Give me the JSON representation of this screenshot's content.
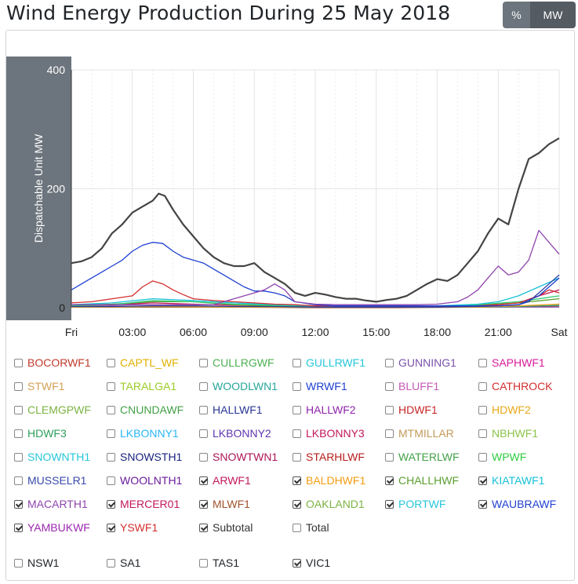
{
  "title": "Wind Energy Production During 25 May 2018",
  "toggle": {
    "percent_label": "%",
    "mw_label": "MW",
    "active": "MW"
  },
  "chart_data": {
    "type": "line",
    "ylabel": "Dispatchable Unit MW",
    "ylim": [
      0,
      400
    ],
    "y_ticks": [
      "0",
      "200",
      "400"
    ],
    "x_ticks": [
      "Fri",
      "03:00",
      "06:00",
      "09:00",
      "12:00",
      "15:00",
      "18:00",
      "21:00",
      "Sat"
    ],
    "x_hours": [
      0,
      3,
      6,
      9,
      12,
      15,
      18,
      21,
      24
    ],
    "series": [
      {
        "name": "Subtotal",
        "color": "#444444",
        "x": [
          0,
          0.5,
          1,
          1.5,
          2,
          2.5,
          3,
          3.5,
          4,
          4.3,
          4.6,
          5,
          5.5,
          6,
          6.5,
          7,
          7.5,
          8,
          8.5,
          9,
          9.5,
          10,
          10.5,
          11,
          11.5,
          12,
          12.5,
          13,
          13.5,
          14,
          14.5,
          15,
          15.5,
          16,
          16.5,
          17,
          17.5,
          18,
          18.5,
          19,
          19.5,
          20,
          20.5,
          21,
          21.5,
          22,
          22.5,
          23,
          23.5,
          24
        ],
        "y": [
          75,
          78,
          85,
          100,
          125,
          140,
          160,
          170,
          180,
          192,
          188,
          165,
          140,
          120,
          100,
          85,
          75,
          70,
          70,
          75,
          60,
          50,
          40,
          25,
          20,
          25,
          22,
          18,
          15,
          15,
          12,
          10,
          13,
          15,
          20,
          30,
          40,
          48,
          45,
          55,
          75,
          95,
          125,
          150,
          140,
          200,
          250,
          260,
          275,
          285
        ]
      },
      {
        "name": "MACARTH1",
        "color": "#8e44ad",
        "x": [
          0,
          1,
          2,
          3,
          4,
          5,
          6,
          7,
          8,
          9,
          9.5,
          10,
          10.5,
          11,
          12,
          13,
          14,
          15,
          16,
          17,
          18,
          19,
          19.5,
          20,
          20.5,
          21,
          21.5,
          22,
          22.5,
          23,
          23.5,
          24
        ],
        "y": [
          5,
          5,
          5,
          5,
          5,
          5,
          5,
          5,
          15,
          25,
          30,
          40,
          30,
          10,
          6,
          5,
          5,
          5,
          5,
          5,
          6,
          10,
          18,
          30,
          50,
          70,
          55,
          60,
          80,
          130,
          110,
          90
        ]
      },
      {
        "name": "MERCER01",
        "color": "#1f3fd1",
        "x": [
          0,
          0.5,
          1,
          1.5,
          2,
          2.5,
          3,
          3.5,
          4,
          4.5,
          5,
          5.5,
          6,
          6.5,
          7,
          7.5,
          8,
          8.5,
          9,
          9.5,
          10,
          10.5,
          11,
          12,
          13,
          14,
          15,
          16,
          17,
          18,
          19,
          20,
          21,
          22,
          23,
          24
        ],
        "y": [
          30,
          40,
          50,
          60,
          70,
          80,
          95,
          105,
          110,
          108,
          95,
          85,
          80,
          75,
          65,
          55,
          45,
          35,
          28,
          28,
          25,
          20,
          10,
          5,
          3,
          3,
          3,
          3,
          3,
          3,
          3,
          3,
          3,
          5,
          20,
          50
        ]
      },
      {
        "name": "YSWF1",
        "color": "#d32f2f",
        "x": [
          0,
          1,
          2,
          3,
          3.5,
          4,
          4.5,
          5,
          5.5,
          6,
          7,
          8,
          9,
          10,
          11,
          12,
          14,
          16,
          18,
          20,
          21,
          22,
          23,
          23.5,
          24
        ],
        "y": [
          8,
          10,
          15,
          20,
          35,
          45,
          40,
          30,
          22,
          15,
          12,
          10,
          8,
          6,
          5,
          3,
          3,
          3,
          3,
          3,
          5,
          8,
          20,
          30,
          25
        ]
      },
      {
        "name": "WAUBRAWF",
        "color": "#2c3e9f",
        "x": [
          0,
          2,
          4,
          6,
          8,
          10,
          12,
          14,
          16,
          18,
          20,
          21,
          22,
          22.5,
          23,
          23.5,
          24
        ],
        "y": [
          2,
          2,
          3,
          3,
          2,
          2,
          1,
          1,
          1,
          1,
          2,
          3,
          5,
          10,
          25,
          40,
          55
        ]
      },
      {
        "name": "PORTWF",
        "color": "#17c0d8",
        "x": [
          0,
          2,
          4,
          6,
          8,
          10,
          12,
          14,
          16,
          18,
          20,
          21,
          22,
          23,
          24
        ],
        "y": [
          5,
          8,
          15,
          12,
          8,
          5,
          3,
          2,
          2,
          3,
          6,
          10,
          20,
          35,
          50
        ]
      },
      {
        "name": "OAKLAND1",
        "color": "#2ecc71",
        "x": [
          0,
          2,
          4,
          6,
          8,
          10,
          12,
          14,
          16,
          18,
          20,
          22,
          24
        ],
        "y": [
          3,
          5,
          12,
          10,
          6,
          4,
          2,
          2,
          2,
          2,
          5,
          10,
          20
        ]
      },
      {
        "name": "CHALLHWF",
        "color": "#5a9e2e",
        "x": [
          0,
          2,
          4,
          6,
          8,
          10,
          12,
          14,
          16,
          18,
          20,
          22,
          24
        ],
        "y": [
          4,
          6,
          10,
          10,
          5,
          3,
          2,
          2,
          2,
          2,
          3,
          8,
          15
        ]
      },
      {
        "name": "ARWF1",
        "color": "#c2185b",
        "x": [
          0,
          2,
          4,
          6,
          8,
          10,
          12,
          14,
          16,
          18,
          20,
          22,
          23,
          24
        ],
        "y": [
          3,
          5,
          8,
          6,
          4,
          3,
          2,
          2,
          2,
          3,
          4,
          8,
          20,
          30
        ]
      },
      {
        "name": "BALDHWF1",
        "color": "#f39c12",
        "x": [
          0,
          4,
          8,
          12,
          16,
          20,
          22,
          24
        ],
        "y": [
          1,
          2,
          1,
          1,
          1,
          1,
          3,
          6
        ]
      },
      {
        "name": "KIATAWF1",
        "color": "#16a085",
        "x": [
          0,
          4,
          8,
          12,
          16,
          20,
          22,
          24
        ],
        "y": [
          1,
          2,
          1,
          1,
          1,
          1,
          2,
          4
        ]
      },
      {
        "name": "MLWF1",
        "color": "#a0522d",
        "x": [
          0,
          4,
          8,
          12,
          16,
          20,
          22,
          24
        ],
        "y": [
          1,
          1,
          1,
          0,
          0,
          1,
          2,
          3
        ]
      },
      {
        "name": "YAMBUKWF",
        "color": "#9b59b6",
        "x": [
          0,
          2,
          4,
          6,
          8,
          10,
          12,
          16,
          20,
          24
        ],
        "y": [
          2,
          3,
          2,
          2,
          1,
          1,
          1,
          1,
          1,
          1
        ]
      }
    ]
  },
  "legend": {
    "items": [
      {
        "label": "BOCORWF1",
        "color": "#c0392b",
        "checked": false
      },
      {
        "label": "CAPTL_WF",
        "color": "#e0b000",
        "checked": false
      },
      {
        "label": "CULLRGWF",
        "color": "#4caf50",
        "checked": false
      },
      {
        "label": "GULLRWF1",
        "color": "#26c6da",
        "checked": false
      },
      {
        "label": "GUNNING1",
        "color": "#7b52ab",
        "checked": false
      },
      {
        "label": "SAPHWF1",
        "color": "#d81b9a",
        "checked": false
      },
      {
        "label": "STWF1",
        "color": "#d4a054",
        "checked": false
      },
      {
        "label": "TARALGA1",
        "color": "#9ccc29",
        "checked": false
      },
      {
        "label": "WOODLWN1",
        "color": "#26a69a",
        "checked": false
      },
      {
        "label": "WRWF1",
        "color": "#1f3fd1",
        "checked": false
      },
      {
        "label": "BLUFF1",
        "color": "#c45ab3",
        "checked": false
      },
      {
        "label": "CATHROCK",
        "color": "#d32f2f",
        "checked": false
      },
      {
        "label": "CLEMGPWF",
        "color": "#7cb342",
        "checked": false
      },
      {
        "label": "CNUNDAWF",
        "color": "#43a047",
        "checked": false
      },
      {
        "label": "HALLWF1",
        "color": "#283593",
        "checked": false
      },
      {
        "label": "HALLWF2",
        "color": "#8e24aa",
        "checked": false
      },
      {
        "label": "HDWF1",
        "color": "#c62828",
        "checked": false
      },
      {
        "label": "HDWF2",
        "color": "#e6a817",
        "checked": false
      },
      {
        "label": "HDWF3",
        "color": "#2e9e5b",
        "checked": false
      },
      {
        "label": "LKBONNY1",
        "color": "#29b6f6",
        "checked": false
      },
      {
        "label": "LKBONNY2",
        "color": "#5e35b1",
        "checked": false
      },
      {
        "label": "LKBONNY3",
        "color": "#c2185b",
        "checked": false
      },
      {
        "label": "MTMILLAR",
        "color": "#c49a5a",
        "checked": false
      },
      {
        "label": "NBHWF1",
        "color": "#8bc34a",
        "checked": false
      },
      {
        "label": "SNOWNTH1",
        "color": "#26c6da",
        "checked": false
      },
      {
        "label": "SNOWSTH1",
        "color": "#1a237e",
        "checked": false
      },
      {
        "label": "SNOWTWN1",
        "color": "#ad1457",
        "checked": false
      },
      {
        "label": "STARHLWF",
        "color": "#b71c1c",
        "checked": false
      },
      {
        "label": "WATERLWF",
        "color": "#43a047",
        "checked": false
      },
      {
        "label": "WPWF",
        "color": "#2ecc40",
        "checked": false
      },
      {
        "label": "MUSSELR1",
        "color": "#3949ab",
        "checked": false
      },
      {
        "label": "WOOLNTH1",
        "color": "#6a1b9a",
        "checked": false
      },
      {
        "label": "ARWF1",
        "color": "#c2185b",
        "checked": true
      },
      {
        "label": "BALDHWF1",
        "color": "#f39c12",
        "checked": true
      },
      {
        "label": "CHALLHWF",
        "color": "#5a9e2e",
        "checked": true
      },
      {
        "label": "KIATAWF1",
        "color": "#17c0d8",
        "checked": true
      },
      {
        "label": "MACARTH1",
        "color": "#8e44ad",
        "checked": true
      },
      {
        "label": "MERCER01",
        "color": "#c2185b",
        "checked": true
      },
      {
        "label": "MLWF1",
        "color": "#a0522d",
        "checked": true
      },
      {
        "label": "OAKLAND1",
        "color": "#7cb342",
        "checked": true
      },
      {
        "label": "PORTWF",
        "color": "#26c6da",
        "checked": true
      },
      {
        "label": "WAUBRAWF",
        "color": "#1f3fd1",
        "checked": true
      },
      {
        "label": "YAMBUKWF",
        "color": "#9c27b0",
        "checked": true
      },
      {
        "label": "YSWF1",
        "color": "#d32f2f",
        "checked": true
      },
      {
        "label": "Subtotal",
        "color": "#333333",
        "checked": true
      },
      {
        "label": "Total",
        "color": "#333333",
        "checked": false
      }
    ],
    "regions": [
      {
        "label": "NSW1",
        "checked": false
      },
      {
        "label": "SA1",
        "checked": false
      },
      {
        "label": "TAS1",
        "checked": false
      },
      {
        "label": "VIC1",
        "checked": true
      }
    ]
  }
}
